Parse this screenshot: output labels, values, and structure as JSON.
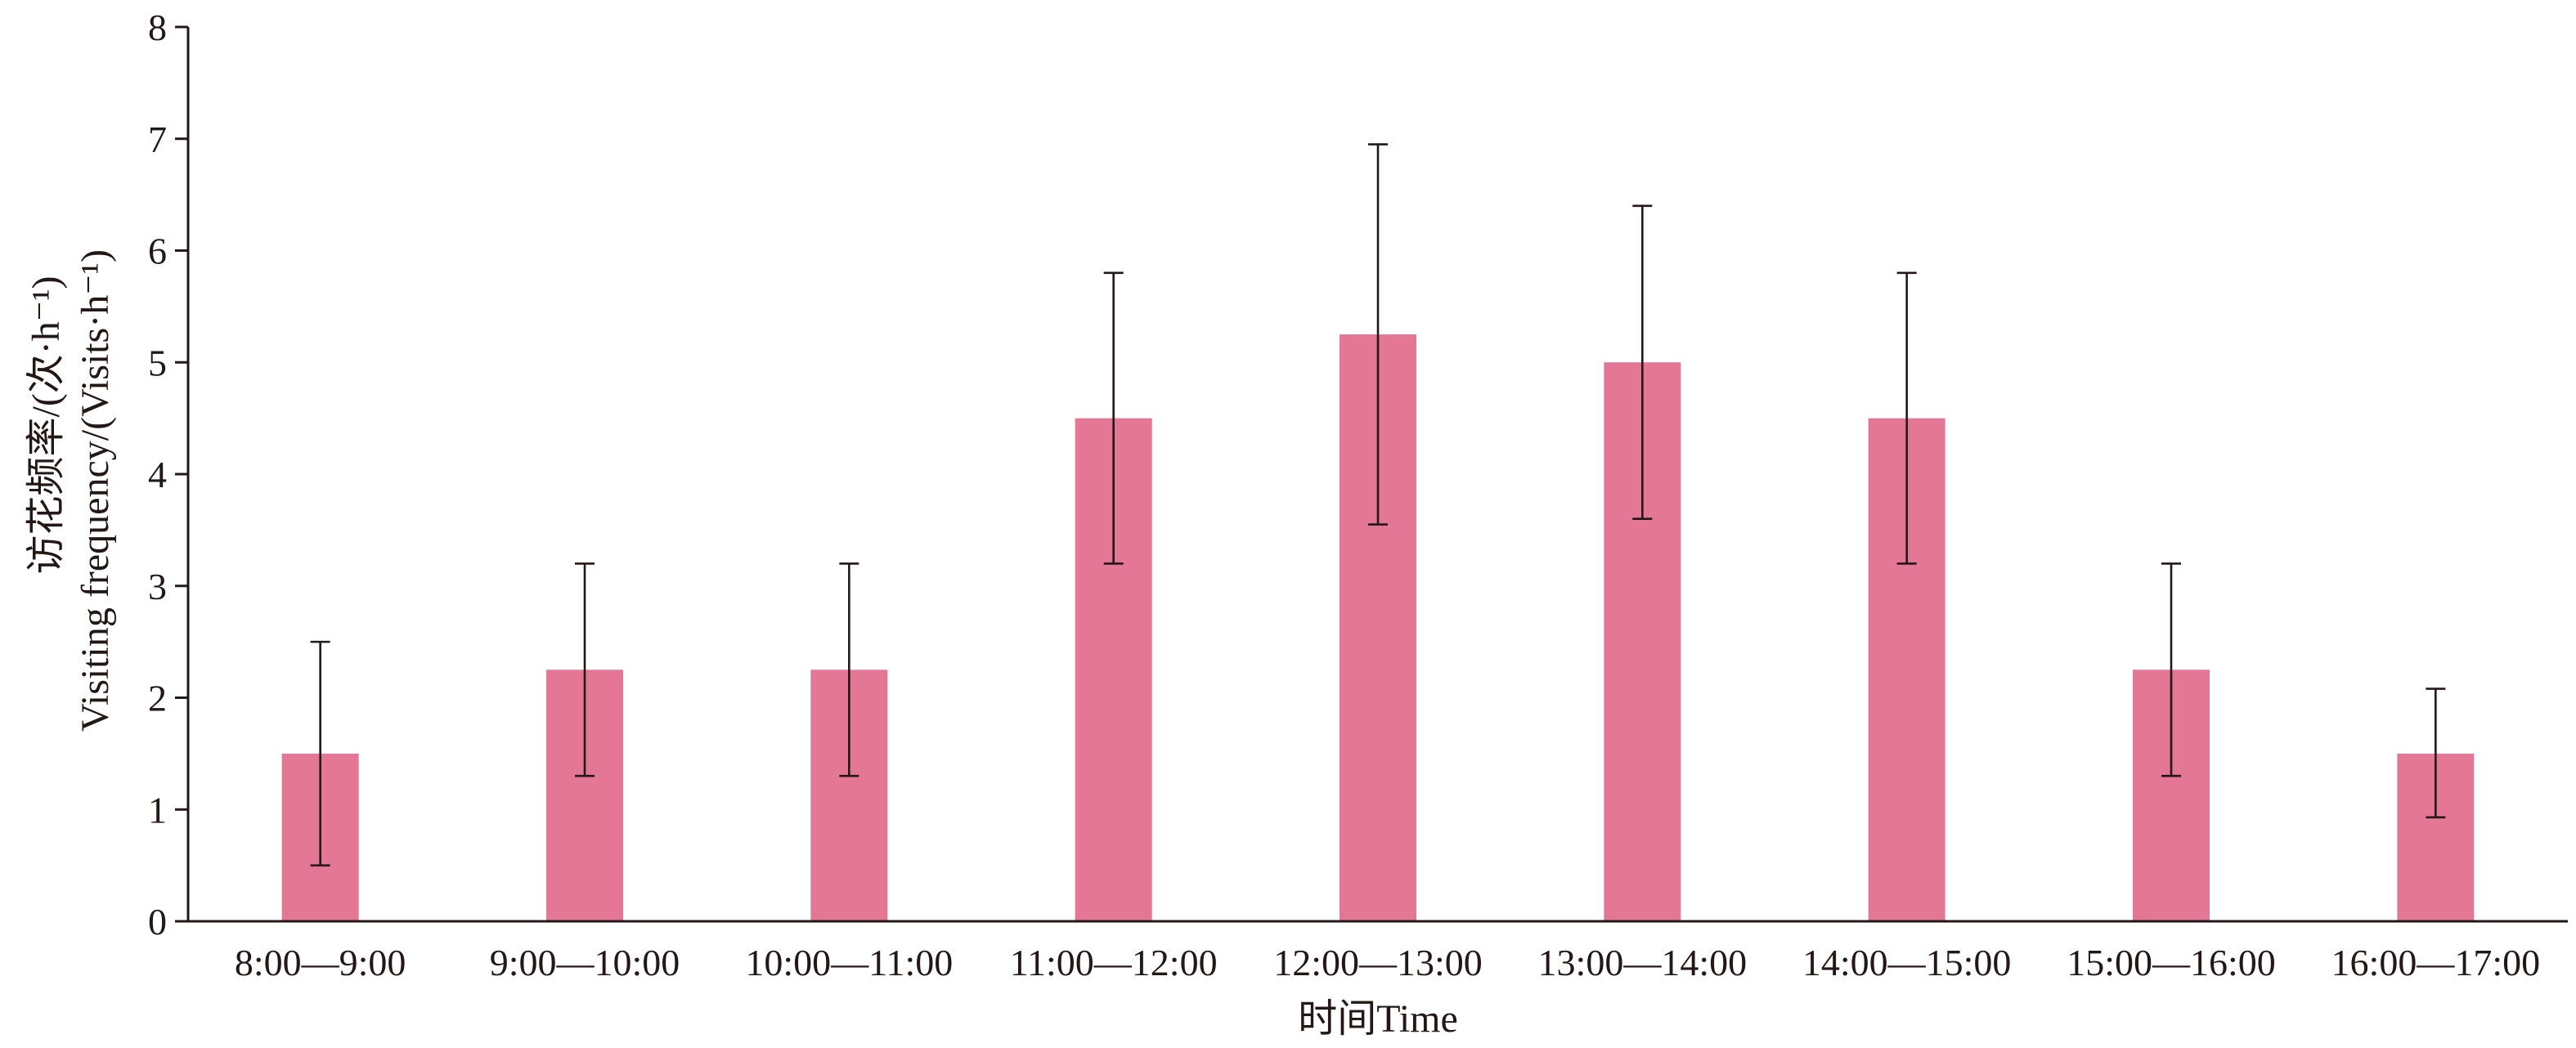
{
  "chart_data": {
    "type": "bar",
    "categories": [
      "8:00—9:00",
      "9:00—10:00",
      "10:00—11:00",
      "11:00—12:00",
      "12:00—13:00",
      "13:00—14:00",
      "14:00—15:00",
      "15:00—16:00",
      "16:00—17:00"
    ],
    "values": [
      1.5,
      2.25,
      2.25,
      4.5,
      5.25,
      5.0,
      4.5,
      2.25,
      1.5
    ],
    "error_bars": [
      [
        0.5,
        2.5
      ],
      [
        1.3,
        3.2
      ],
      [
        1.3,
        3.2
      ],
      [
        3.2,
        5.8
      ],
      [
        3.55,
        6.95
      ],
      [
        3.6,
        6.4
      ],
      [
        3.2,
        5.8
      ],
      [
        1.3,
        3.2
      ],
      [
        0.93,
        2.08
      ]
    ],
    "xlabel": "时间Time",
    "ylabel_line1": "访花频率/(次·h⁻¹)",
    "ylabel_line2": "Visiting frequency/(Visits·h⁻¹)",
    "ylim": [
      0,
      8
    ],
    "yticks": [
      "0",
      "1",
      "2",
      "3",
      "4",
      "5",
      "6",
      "7",
      "8"
    ],
    "bar_color": "#e47795",
    "grid": false,
    "legend": "none"
  }
}
